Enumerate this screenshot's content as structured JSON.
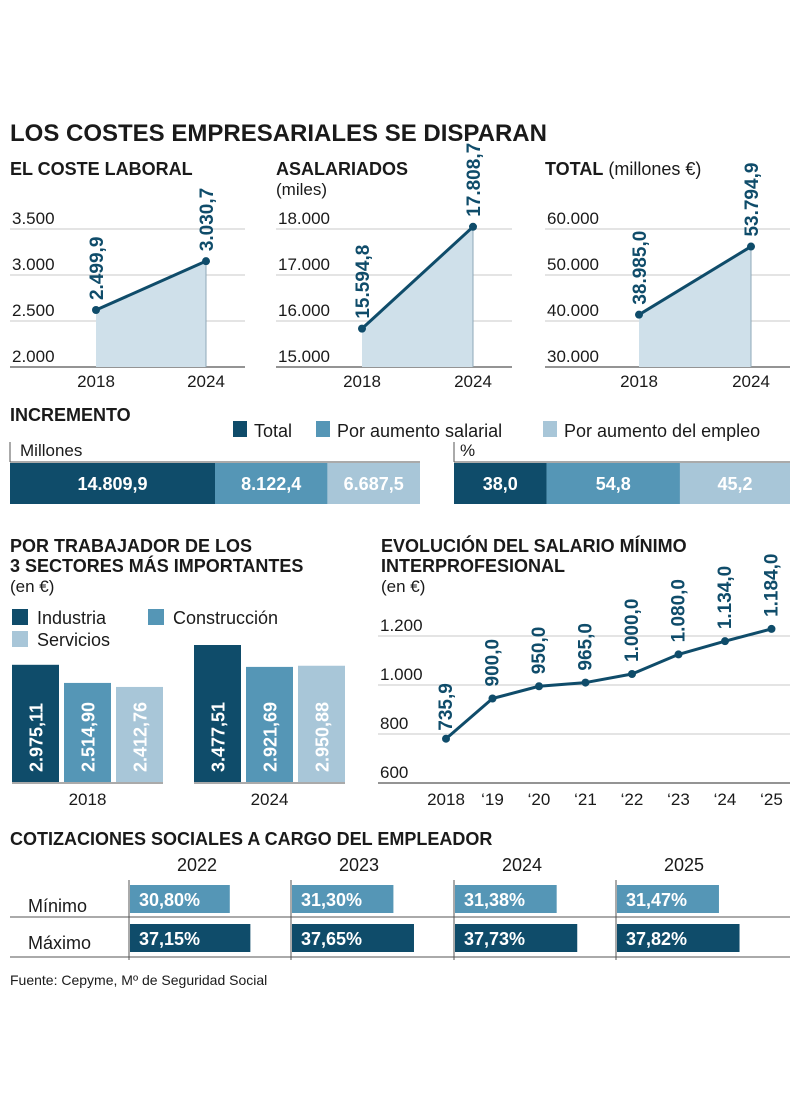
{
  "title": "LOS COSTES EMPRESARIALES SE DISPARAN",
  "colors": {
    "dark": "#0f4c6a",
    "mid": "#5596b6",
    "light": "#a8c6d8",
    "fill": "#cfe0ea",
    "grid": "#c8c8c8",
    "text": "#1a1a1a"
  },
  "source": "Fuente: Cepyme, Mº de Seguridad Social",
  "chart_data": [
    {
      "id": "coste-laboral",
      "type": "area",
      "title": "EL COSTE LABORAL",
      "subtitle": "",
      "x": [
        "2018",
        "2024"
      ],
      "values": [
        2499.9,
        3030.7
      ],
      "labels": [
        "2.499,9",
        "3.030,7"
      ],
      "ylim": [
        2000,
        3500
      ],
      "yticks": [
        2000,
        2500,
        3000,
        3500
      ],
      "ytick_labels": [
        "2.000",
        "2.500",
        "3.000",
        "3.500"
      ],
      "grid": true
    },
    {
      "id": "asalariados",
      "type": "area",
      "title": "ASALARIADOS",
      "subtitle": "(miles)",
      "x": [
        "2018",
        "2024"
      ],
      "values": [
        15594.8,
        17808.7
      ],
      "labels": [
        "15.594,8",
        "17.808,7"
      ],
      "ylim": [
        15000,
        18000
      ],
      "yticks": [
        15000,
        16000,
        17000,
        18000
      ],
      "ytick_labels": [
        "15.000",
        "16.000",
        "17.000",
        "18.000"
      ],
      "grid": true
    },
    {
      "id": "total",
      "type": "area",
      "title": "TOTAL",
      "subtitle": "(millones €)",
      "x": [
        "2018",
        "2024"
      ],
      "values": [
        38985.0,
        53794.9
      ],
      "labels": [
        "38.985,0",
        "53.794,9"
      ],
      "ylim": [
        30000,
        60000
      ],
      "yticks": [
        30000,
        40000,
        50000,
        60000
      ],
      "ytick_labels": [
        "30.000",
        "40.000",
        "50.000",
        "60.000"
      ],
      "grid": true
    },
    {
      "id": "incremento",
      "type": "bar",
      "title": "INCREMENTO",
      "legend": [
        "Total",
        "Por aumento salarial",
        "Por aumento del empleo"
      ],
      "legend_position": "top-right",
      "panels": [
        {
          "unit": "Millones",
          "values": [
            14809.9,
            8122.4,
            6687.5
          ],
          "labels": [
            "14.809,9",
            "8.122,4",
            "6.687,5"
          ]
        },
        {
          "unit": "%",
          "values": [
            38.0,
            54.8,
            45.2
          ],
          "labels": [
            "38,0",
            "54,8",
            "45,2"
          ]
        }
      ]
    },
    {
      "id": "por-trabajador",
      "type": "bar",
      "title": "POR TRABAJADOR DE LOS",
      "title_line2": "3 SECTORES MÁS IMPORTANTES",
      "subtitle": "(en €)",
      "categories": [
        "2018",
        "2024"
      ],
      "series": [
        {
          "name": "Industria",
          "values": [
            2975.11,
            3477.51
          ],
          "labels": [
            "2.975,11",
            "3.477,51"
          ]
        },
        {
          "name": "Construcción",
          "values": [
            2514.9,
            2921.69
          ],
          "labels": [
            "2.514,90",
            "2.921,69"
          ]
        },
        {
          "name": "Servicios",
          "values": [
            2412.76,
            2950.88
          ],
          "labels": [
            "2.412,76",
            "2.950,88"
          ]
        }
      ],
      "ylim": [
        0,
        3477.51
      ]
    },
    {
      "id": "smi",
      "type": "line",
      "title": "EVOLUCIÓN DEL SALARIO MÍNIMO",
      "title_line2": "INTERPROFESIONAL",
      "subtitle": "(en €)",
      "x": [
        "2018",
        "'19",
        "'20",
        "'21",
        "'22",
        "'23",
        "'24",
        "'25"
      ],
      "x_labels": [
        "2018",
        "‘19",
        "‘20",
        "‘21",
        "‘22",
        "‘23",
        "‘24",
        "‘25"
      ],
      "values": [
        735.9,
        900.0,
        950.0,
        965.0,
        1000.0,
        1080.0,
        1134.0,
        1184.0
      ],
      "labels": [
        "735,9",
        "900,0",
        "950,0",
        "965,0",
        "1.000,0",
        "1.080,0",
        "1.134,0",
        "1.184,0"
      ],
      "ylim": [
        600,
        1200
      ],
      "yticks": [
        600,
        800,
        1000,
        1200
      ],
      "ytick_labels": [
        "600",
        "800",
        "1.000",
        "1.200"
      ],
      "grid": true
    },
    {
      "id": "cotizaciones",
      "type": "bar",
      "title": "COTIZACIONES SOCIALES A CARGO DEL EMPLEADOR",
      "categories": [
        "2022",
        "2023",
        "2024",
        "2025"
      ],
      "series": [
        {
          "name": "Mínimo",
          "values": [
            30.8,
            31.3,
            31.38,
            31.47
          ],
          "labels": [
            "30,80%",
            "31,30%",
            "31,38%",
            "31,47%"
          ]
        },
        {
          "name": "Máximo",
          "values": [
            37.15,
            37.65,
            37.73,
            37.82
          ],
          "labels": [
            "37,15%",
            "37,65%",
            "37,73%",
            "37,82%"
          ]
        }
      ],
      "xlim": [
        0,
        50
      ]
    }
  ]
}
